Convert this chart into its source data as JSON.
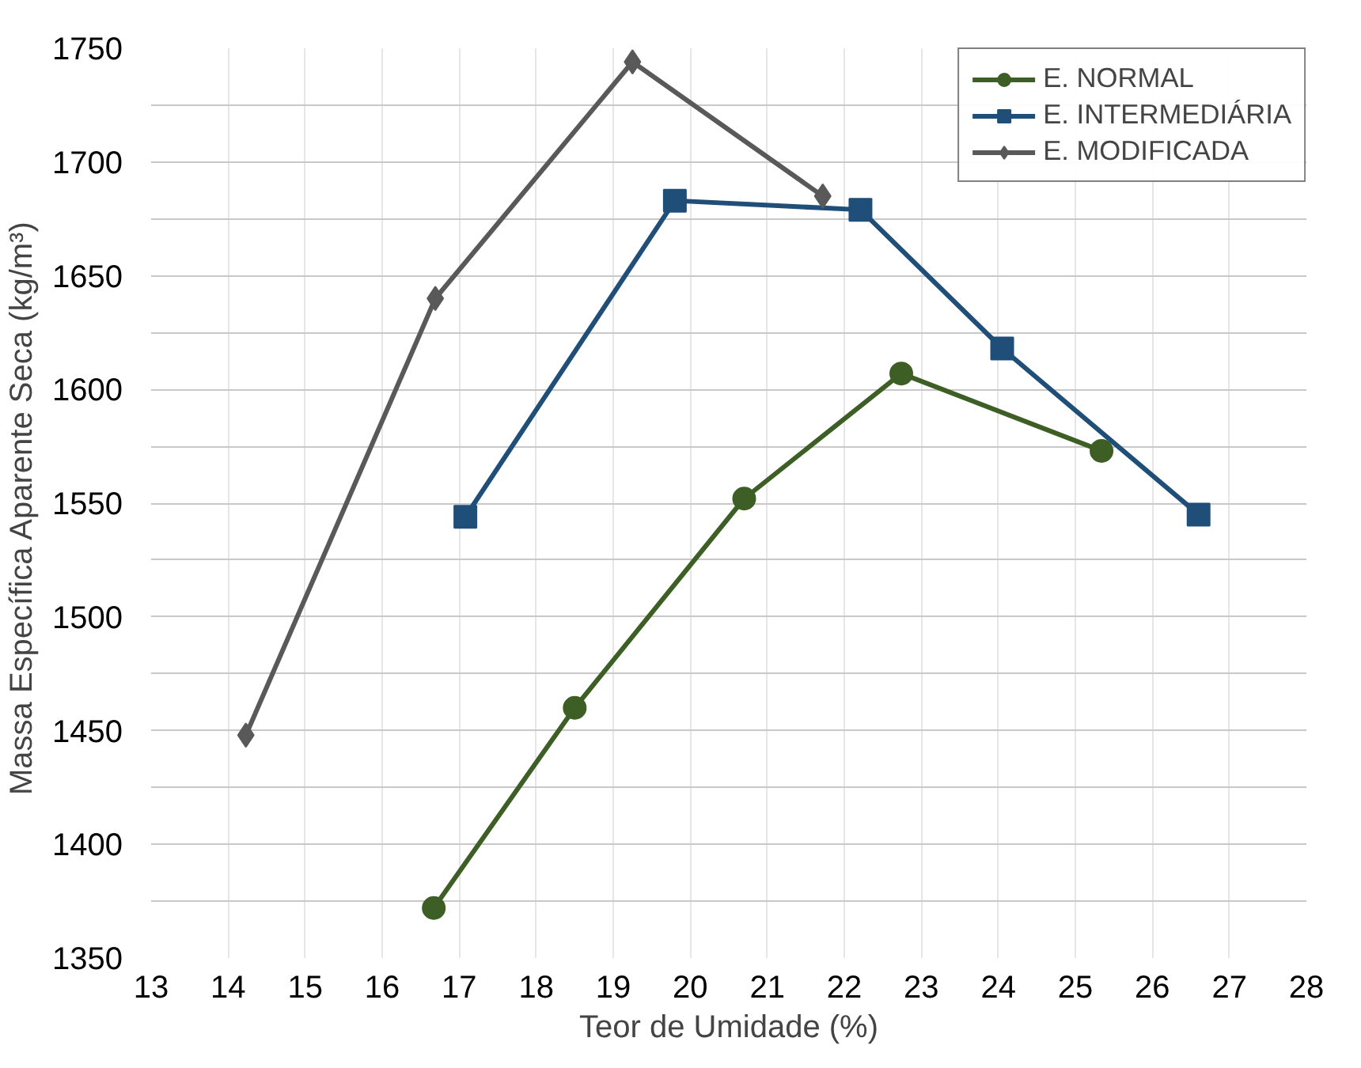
{
  "chart_data": {
    "type": "line",
    "xlabel": "Teor de Umidade (%)",
    "ylabel": "Massa Específica  Aparente Seca (kg/m³)",
    "xlim": [
      13,
      28
    ],
    "xticks": [
      13,
      14,
      15,
      16,
      17,
      18,
      19,
      20,
      21,
      22,
      23,
      24,
      25,
      26,
      27,
      28
    ],
    "ylim": [
      1350,
      1750
    ],
    "yticks": [
      1350,
      {
        "value": 1375,
        "label": null
      },
      1400,
      {
        "value": 1425,
        "label": null
      },
      1450,
      {
        "value": 1475,
        "label": null
      },
      1500,
      {
        "value": 1525,
        "label": null
      },
      1550,
      {
        "value": 1575,
        "label": null
      },
      1600,
      {
        "value": 1625,
        "label": null
      },
      1650,
      {
        "value": 1675,
        "label": null
      },
      1700,
      {
        "value": 1725,
        "label": null
      },
      1750
    ],
    "grid": true,
    "legend": "top right",
    "series": [
      {
        "name": "E. NORMAL",
        "color": "#3d5f25",
        "marker": "circle",
        "x": [
          16.67,
          18.5,
          20.7,
          22.74,
          25.34
        ],
        "values": [
          1372,
          1460,
          1552,
          1607,
          1573
        ]
      },
      {
        "name": "E. INTERMEDIÁRIA",
        "color": "#1f4e79",
        "marker": "square",
        "x": [
          17.08,
          19.8,
          22.21,
          24.05,
          26.6
        ],
        "values": [
          1544,
          1683,
          1679,
          1618,
          1545
        ]
      },
      {
        "name": "E. MODIFICADA",
        "color": "#595959",
        "marker": "diamond",
        "x": [
          14.23,
          16.69,
          19.25,
          21.72
        ],
        "values": [
          1448,
          1640,
          1744,
          1685
        ]
      }
    ]
  }
}
